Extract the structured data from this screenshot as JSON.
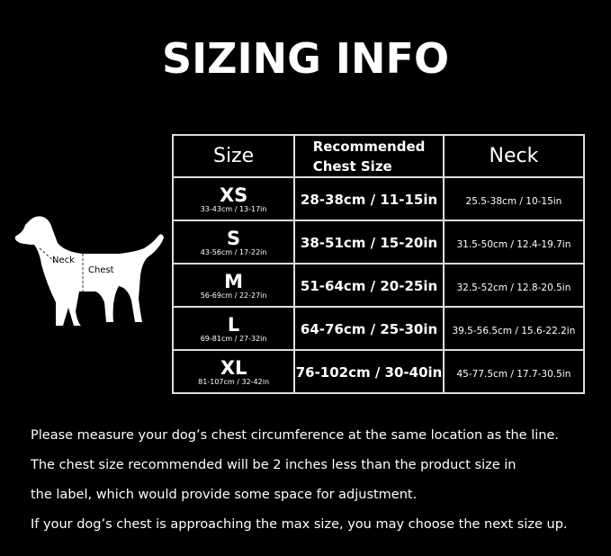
{
  "title": "SIZING INFO",
  "table": {
    "headers": {
      "size": "Size",
      "chest_line1": "Recommended",
      "chest_line2": "Chest Size",
      "neck": "Neck"
    },
    "rows": [
      {
        "size": "XS",
        "product": "33-43cm / 13-17in",
        "chest": "28-38cm / 11-15in",
        "neck": "25.5-38cm / 10-15in"
      },
      {
        "size": "S",
        "product": "43-56cm / 17-22in",
        "chest": "38-51cm / 15-20in",
        "neck": "31.5-50cm / 12.4-19.7in"
      },
      {
        "size": "M",
        "product": "56-69cm / 22-27in",
        "chest": "51-64cm / 20-25in",
        "neck": "32.5-52cm / 12.8-20.5in"
      },
      {
        "size": "L",
        "product": "69-81cm / 27-32in",
        "chest": "64-76cm / 25-30in",
        "neck": "39.5-56.5cm / 15.6-22.2in"
      },
      {
        "size": "XL",
        "product": "81-107cm / 32-42in",
        "chest": "76-102cm / 30-40in",
        "neck": "45-77.5cm / 17.7-30.5in"
      }
    ]
  },
  "dog": {
    "neck_label": "Neck",
    "chest_label": "Chest"
  },
  "notes": [
    "Please measure your dog’s chest circumference at the same location as the line.",
    "The chest size recommended will be 2 inches less than the product size in",
    "the label, which would provide some space for adjustment.",
    "If your dog’s chest is approaching the max size, you may choose the next size up."
  ]
}
